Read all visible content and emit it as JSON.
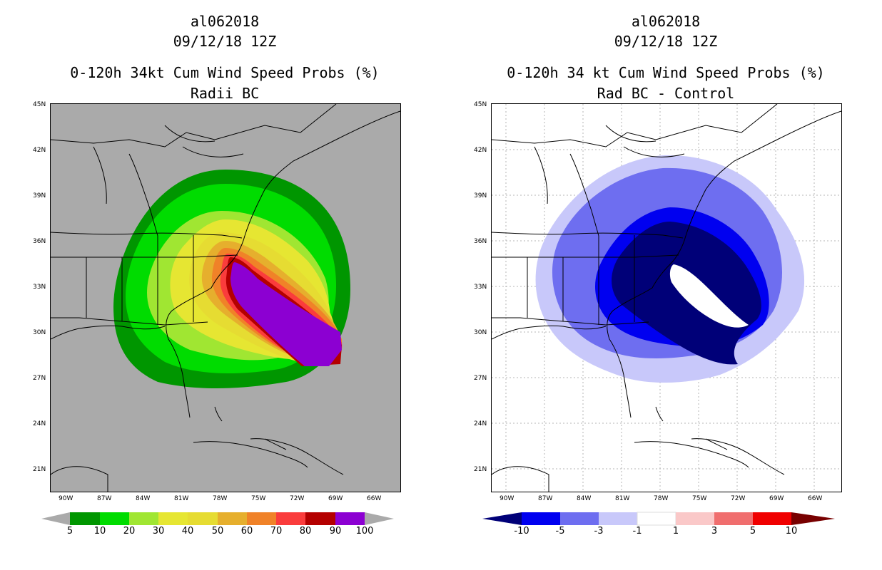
{
  "left_panel": {
    "title_storm": "al062018",
    "title_date": "09/12/18 12Z",
    "title_product": "0-120h 34kt Cum Wind Speed Probs (%)",
    "title_sub": "Radii BC",
    "colorbar_labels": [
      "5",
      "10",
      "20",
      "30",
      "40",
      "50",
      "60",
      "70",
      "80",
      "90",
      "100"
    ],
    "colorbar_colors": [
      "#009600",
      "#00dc00",
      "#a0e632",
      "#e6e632",
      "#e6dc32",
      "#e6af2d",
      "#f08228",
      "#fa3c3c",
      "#b40000",
      "#8c00d2"
    ],
    "background_color": "#aaaaaa"
  },
  "right_panel": {
    "title_storm": "al062018",
    "title_date": "09/12/18 12Z",
    "title_product": "0-120h 34 kt Cum Wind Speed Probs (%)",
    "title_sub": "Rad BC - Control",
    "colorbar_labels": [
      "-10",
      "-5",
      "-3",
      "-1",
      "1",
      "3",
      "5",
      "10"
    ],
    "colorbar_colors": [
      "#000078",
      "#0000f0",
      "#6e6ef0",
      "#c8c8fa",
      "#ffffff",
      "#fac8c8",
      "#f06e6e",
      "#f00000"
    ],
    "background_color": "#ffffff"
  },
  "lat_labels": [
    "45N",
    "42N",
    "39N",
    "36N",
    "33N",
    "30N",
    "27N",
    "24N",
    "21N"
  ],
  "lon_labels": [
    "90W",
    "87W",
    "84W",
    "81W",
    "78W",
    "75W",
    "72W",
    "69W",
    "66W"
  ],
  "icons": {
    "map": "coastline-map",
    "arrow": "colorbar-arrow"
  }
}
